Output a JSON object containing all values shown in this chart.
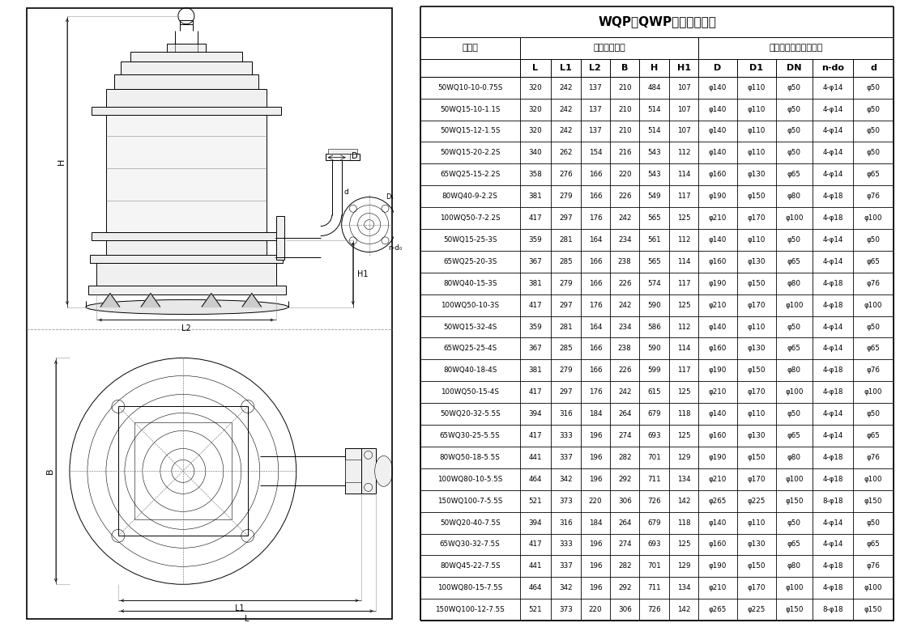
{
  "title": "WQP（QWP）安装尺寸表",
  "waixing": "外形安装尺寸",
  "pump_outlet": "泵出口法兰及连接尺寸",
  "type_label": "型　号",
  "col_labels": [
    "L",
    "L1",
    "L2",
    "B",
    "H",
    "H1",
    "D",
    "D1",
    "DN",
    "n-do",
    "d"
  ],
  "rows": [
    [
      "50WQ10-10-0.75S",
      "320",
      "242",
      "137",
      "210",
      "484",
      "107",
      "φ140",
      "φ110",
      "φ50",
      "4-φ14",
      "φ50"
    ],
    [
      "50WQ15-10-1.1S",
      "320",
      "242",
      "137",
      "210",
      "514",
      "107",
      "φ140",
      "φ110",
      "φ50",
      "4-φ14",
      "φ50"
    ],
    [
      "50WQ15-12-1.5S",
      "320",
      "242",
      "137",
      "210",
      "514",
      "107",
      "φ140",
      "φ110",
      "φ50",
      "4-φ14",
      "φ50"
    ],
    [
      "50WQ15-20-2.2S",
      "340",
      "262",
      "154",
      "216",
      "543",
      "112",
      "φ140",
      "φ110",
      "φ50",
      "4-φ14",
      "φ50"
    ],
    [
      "65WQ25-15-2.2S",
      "358",
      "276",
      "166",
      "220",
      "543",
      "114",
      "φ160",
      "φ130",
      "φ65",
      "4-φ14",
      "φ65"
    ],
    [
      "80WQ40-9-2.2S",
      "381",
      "279",
      "166",
      "226",
      "549",
      "117",
      "φ190",
      "φ150",
      "φ80",
      "4-φ18",
      "φ76"
    ],
    [
      "100WQ50-7-2.2S",
      "417",
      "297",
      "176",
      "242",
      "565",
      "125",
      "φ210",
      "φ170",
      "φ100",
      "4-φ18",
      "φ100"
    ],
    [
      "50WQ15-25-3S",
      "359",
      "281",
      "164",
      "234",
      "561",
      "112",
      "φ140",
      "φ110",
      "φ50",
      "4-φ14",
      "φ50"
    ],
    [
      "65WQ25-20-3S",
      "367",
      "285",
      "166",
      "238",
      "565",
      "114",
      "φ160",
      "φ130",
      "φ65",
      "4-φ14",
      "φ65"
    ],
    [
      "80WQ40-15-3S",
      "381",
      "279",
      "166",
      "226",
      "574",
      "117",
      "φ190",
      "φ150",
      "φ80",
      "4-φ18",
      "φ76"
    ],
    [
      "100WQ50-10-3S",
      "417",
      "297",
      "176",
      "242",
      "590",
      "125",
      "φ210",
      "φ170",
      "φ100",
      "4-φ18",
      "φ100"
    ],
    [
      "50WQ15-32-4S",
      "359",
      "281",
      "164",
      "234",
      "586",
      "112",
      "φ140",
      "φ110",
      "φ50",
      "4-φ14",
      "φ50"
    ],
    [
      "65WQ25-25-4S",
      "367",
      "285",
      "166",
      "238",
      "590",
      "114",
      "φ160",
      "φ130",
      "φ65",
      "4-φ14",
      "φ65"
    ],
    [
      "80WQ40-18-4S",
      "381",
      "279",
      "166",
      "226",
      "599",
      "117",
      "φ190",
      "φ150",
      "φ80",
      "4-φ18",
      "φ76"
    ],
    [
      "100WQ50-15-4S",
      "417",
      "297",
      "176",
      "242",
      "615",
      "125",
      "φ210",
      "φ170",
      "φ100",
      "4-φ18",
      "φ100"
    ],
    [
      "50WQ20-32-5.5S",
      "394",
      "316",
      "184",
      "264",
      "679",
      "118",
      "φ140",
      "φ110",
      "φ50",
      "4-φ14",
      "φ50"
    ],
    [
      "65WQ30-25-5.5S",
      "417",
      "333",
      "196",
      "274",
      "693",
      "125",
      "φ160",
      "φ130",
      "φ65",
      "4-φ14",
      "φ65"
    ],
    [
      "80WQ50-18-5.5S",
      "441",
      "337",
      "196",
      "282",
      "701",
      "129",
      "φ190",
      "φ150",
      "φ80",
      "4-φ18",
      "φ76"
    ],
    [
      "100WQ80-10-5.5S",
      "464",
      "342",
      "196",
      "292",
      "711",
      "134",
      "φ210",
      "φ170",
      "φ100",
      "4-φ18",
      "φ100"
    ],
    [
      "150WQ100-7-5.5S",
      "521",
      "373",
      "220",
      "306",
      "726",
      "142",
      "φ265",
      "φ225",
      "φ150",
      "8-φ18",
      "φ150"
    ],
    [
      "50WQ20-40-7.5S",
      "394",
      "316",
      "184",
      "264",
      "679",
      "118",
      "φ140",
      "φ110",
      "φ50",
      "4-φ14",
      "φ50"
    ],
    [
      "65WQ30-32-7.5S",
      "417",
      "333",
      "196",
      "274",
      "693",
      "125",
      "φ160",
      "φ130",
      "φ65",
      "4-φ14",
      "φ65"
    ],
    [
      "80WQ45-22-7.5S",
      "441",
      "337",
      "196",
      "282",
      "701",
      "129",
      "φ190",
      "φ150",
      "φ80",
      "4-φ18",
      "φ76"
    ],
    [
      "100WQ80-15-7.5S",
      "464",
      "342",
      "196",
      "292",
      "711",
      "134",
      "φ210",
      "φ170",
      "φ100",
      "4-φ18",
      "φ100"
    ],
    [
      "150WQ100-12-7.5S",
      "521",
      "373",
      "220",
      "306",
      "726",
      "142",
      "φ265",
      "φ225",
      "φ150",
      "8-φ18",
      "φ150"
    ]
  ],
  "bg_color": "#ffffff"
}
